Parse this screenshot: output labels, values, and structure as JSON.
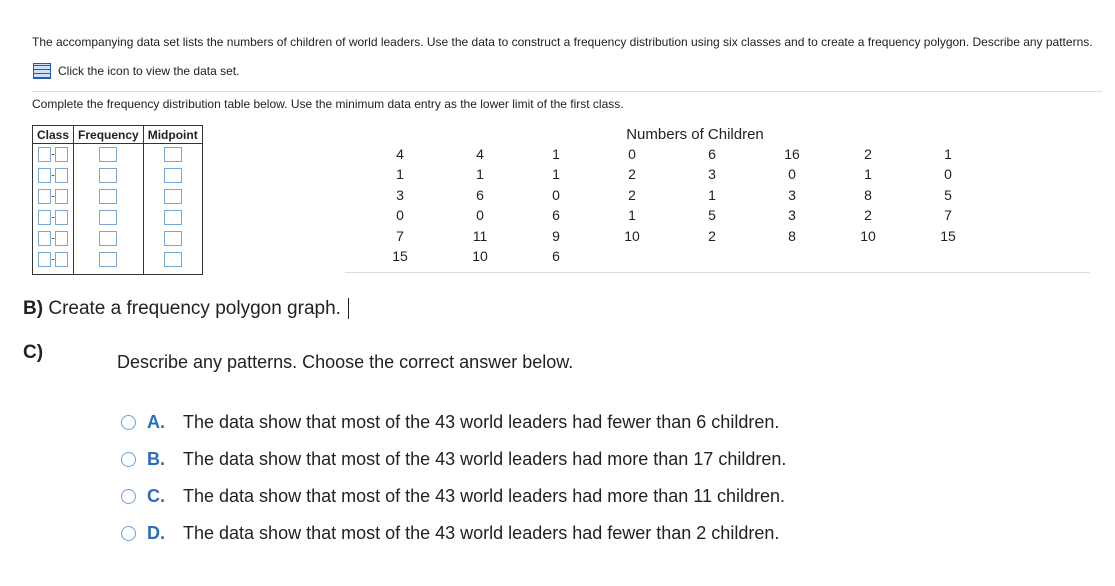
{
  "instructions": "The accompanying data set lists the numbers of children of world leaders. Use the data to construct a frequency distribution using six classes and to create a frequency polygon. Describe any patterns.",
  "data_link": "Click the icon to view the data set.",
  "table_prompt": "Complete the frequency distribution table below. Use the minimum data entry as the lower limit of the first class.",
  "frequency_table": {
    "headers": [
      "Class",
      "Frequency",
      "Midpoint"
    ],
    "class_separator": "-"
  },
  "data_set": {
    "title": "Numbers of Children",
    "rows": [
      [
        4,
        4,
        1,
        0,
        6,
        16,
        2,
        1
      ],
      [
        1,
        1,
        1,
        2,
        3,
        0,
        1,
        0
      ],
      [
        3,
        6,
        0,
        2,
        1,
        3,
        8,
        5
      ],
      [
        0,
        0,
        6,
        1,
        5,
        3,
        2,
        7
      ],
      [
        7,
        11,
        9,
        10,
        2,
        8,
        10,
        15
      ],
      [
        15,
        10,
        6
      ]
    ]
  },
  "part_b": {
    "label": "B)",
    "text": "Create a frequency polygon graph."
  },
  "part_c": {
    "label": "C)",
    "prompt": "Describe any patterns. Choose the correct answer below.",
    "options": [
      {
        "letter": "A.",
        "text": "The data show that most of the 43 world leaders had fewer than 6 children."
      },
      {
        "letter": "B.",
        "text": "The data show that most of the 43 world leaders had more than 17 children."
      },
      {
        "letter": "C.",
        "text": "The data show that most of the 43 world leaders had more than 11 children."
      },
      {
        "letter": "D.",
        "text": "The data show that most of the 43 world leaders had fewer than 2 children."
      }
    ]
  }
}
